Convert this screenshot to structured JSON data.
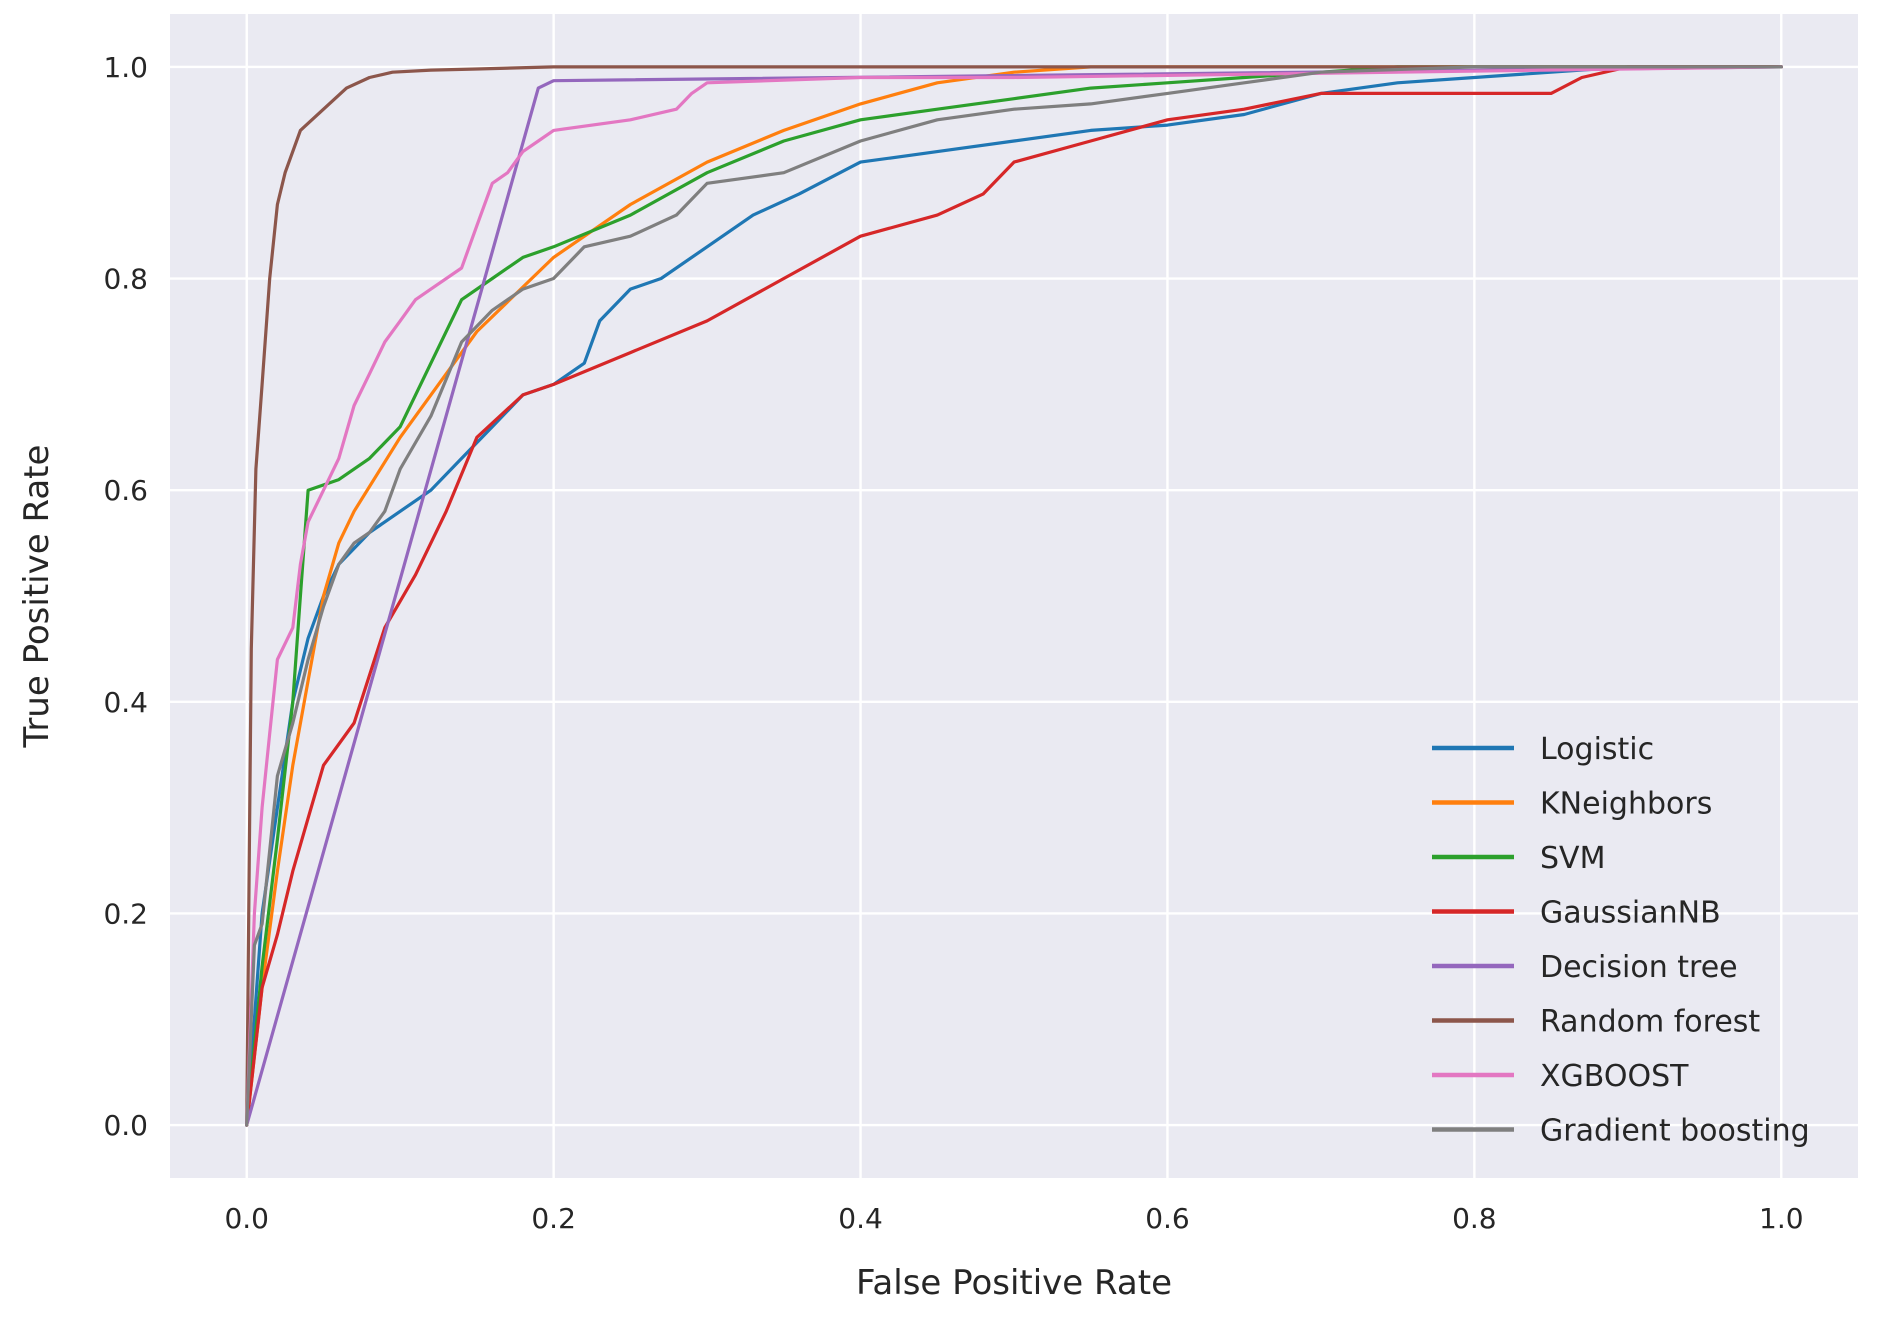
{
  "chart_data": {
    "type": "line",
    "title": "",
    "xlabel": "False Positive Rate",
    "ylabel": "True Positive Rate",
    "xlim": [
      -0.05,
      1.05
    ],
    "ylim": [
      -0.05,
      1.05
    ],
    "xticks": [
      0.0,
      0.2,
      0.4,
      0.6,
      0.8,
      1.0
    ],
    "yticks": [
      0.0,
      0.2,
      0.4,
      0.6,
      0.8,
      1.0
    ],
    "xtick_labels": [
      "0.0",
      "0.2",
      "0.4",
      "0.6",
      "0.8",
      "1.0"
    ],
    "ytick_labels": [
      "0.0",
      "0.2",
      "0.4",
      "0.6",
      "0.8",
      "1.0"
    ],
    "grid": true,
    "legend_position": "lower-right",
    "series": [
      {
        "name": "Logistic",
        "color": "#1f77b4",
        "x": [
          0.0,
          0.005,
          0.01,
          0.02,
          0.03,
          0.04,
          0.05,
          0.06,
          0.08,
          0.1,
          0.12,
          0.14,
          0.16,
          0.18,
          0.2,
          0.22,
          0.23,
          0.25,
          0.27,
          0.3,
          0.33,
          0.36,
          0.4,
          0.45,
          0.5,
          0.55,
          0.6,
          0.65,
          0.7,
          0.75,
          0.8,
          0.85,
          0.9,
          1.0
        ],
        "y": [
          0.0,
          0.1,
          0.2,
          0.3,
          0.4,
          0.46,
          0.5,
          0.53,
          0.56,
          0.58,
          0.6,
          0.63,
          0.66,
          0.69,
          0.7,
          0.72,
          0.76,
          0.79,
          0.8,
          0.83,
          0.86,
          0.88,
          0.91,
          0.92,
          0.93,
          0.94,
          0.945,
          0.955,
          0.975,
          0.985,
          0.99,
          0.995,
          1.0,
          1.0
        ]
      },
      {
        "name": "KNeighbors",
        "color": "#ff7f0e",
        "x": [
          0.0,
          0.01,
          0.02,
          0.03,
          0.04,
          0.05,
          0.06,
          0.07,
          0.1,
          0.15,
          0.2,
          0.25,
          0.3,
          0.35,
          0.4,
          0.45,
          0.5,
          0.55,
          0.6,
          0.7,
          0.8,
          0.9,
          1.0
        ],
        "y": [
          0.0,
          0.13,
          0.24,
          0.34,
          0.42,
          0.5,
          0.55,
          0.58,
          0.65,
          0.75,
          0.82,
          0.87,
          0.91,
          0.94,
          0.965,
          0.985,
          0.995,
          1.0,
          1.0,
          1.0,
          1.0,
          1.0,
          1.0
        ]
      },
      {
        "name": "SVM",
        "color": "#2ca02c",
        "x": [
          0.0,
          0.01,
          0.02,
          0.03,
          0.035,
          0.04,
          0.06,
          0.08,
          0.1,
          0.12,
          0.14,
          0.16,
          0.18,
          0.2,
          0.25,
          0.3,
          0.35,
          0.4,
          0.45,
          0.5,
          0.55,
          0.6,
          0.65,
          0.7,
          0.75,
          0.8,
          0.9,
          1.0
        ],
        "y": [
          0.0,
          0.15,
          0.27,
          0.4,
          0.5,
          0.6,
          0.61,
          0.63,
          0.66,
          0.72,
          0.78,
          0.8,
          0.82,
          0.83,
          0.86,
          0.9,
          0.93,
          0.95,
          0.96,
          0.97,
          0.98,
          0.985,
          0.99,
          0.995,
          1.0,
          1.0,
          1.0,
          1.0
        ]
      },
      {
        "name": "GaussianNB",
        "color": "#d62728",
        "x": [
          0.0,
          0.01,
          0.02,
          0.03,
          0.04,
          0.05,
          0.07,
          0.09,
          0.11,
          0.13,
          0.15,
          0.18,
          0.2,
          0.25,
          0.3,
          0.35,
          0.4,
          0.45,
          0.48,
          0.5,
          0.55,
          0.6,
          0.65,
          0.7,
          0.8,
          0.85,
          0.87,
          0.9,
          1.0
        ],
        "y": [
          0.0,
          0.13,
          0.18,
          0.24,
          0.29,
          0.34,
          0.38,
          0.47,
          0.52,
          0.58,
          0.65,
          0.69,
          0.7,
          0.73,
          0.76,
          0.8,
          0.84,
          0.86,
          0.88,
          0.91,
          0.93,
          0.95,
          0.96,
          0.975,
          0.975,
          0.975,
          0.99,
          1.0,
          1.0
        ]
      },
      {
        "name": "Decision tree",
        "color": "#9467bd",
        "x": [
          0.0,
          0.19,
          0.2,
          1.0
        ],
        "y": [
          0.0,
          0.98,
          0.987,
          1.0
        ]
      },
      {
        "name": "Random forest",
        "color": "#8c564b",
        "x": [
          0.0,
          0.003,
          0.006,
          0.01,
          0.015,
          0.02,
          0.025,
          0.035,
          0.05,
          0.065,
          0.08,
          0.095,
          0.12,
          0.15,
          0.2,
          0.3,
          0.5,
          1.0
        ],
        "y": [
          0.0,
          0.45,
          0.62,
          0.7,
          0.8,
          0.87,
          0.9,
          0.94,
          0.96,
          0.98,
          0.99,
          0.995,
          0.997,
          0.998,
          1.0,
          1.0,
          1.0,
          1.0
        ]
      },
      {
        "name": "XGBOOST",
        "color": "#e377c2",
        "x": [
          0.0,
          0.005,
          0.01,
          0.015,
          0.02,
          0.03,
          0.035,
          0.04,
          0.05,
          0.06,
          0.07,
          0.08,
          0.09,
          0.1,
          0.11,
          0.12,
          0.14,
          0.15,
          0.16,
          0.17,
          0.18,
          0.19,
          0.2,
          0.25,
          0.28,
          0.29,
          0.3,
          0.4,
          0.5,
          1.0
        ],
        "y": [
          0.0,
          0.2,
          0.3,
          0.37,
          0.44,
          0.47,
          0.53,
          0.57,
          0.6,
          0.63,
          0.68,
          0.71,
          0.74,
          0.76,
          0.78,
          0.79,
          0.81,
          0.85,
          0.89,
          0.9,
          0.92,
          0.93,
          0.94,
          0.95,
          0.96,
          0.975,
          0.985,
          0.99,
          0.99,
          1.0
        ]
      },
      {
        "name": "Gradient boosting",
        "color": "#7f7f7f",
        "x": [
          0.0,
          0.005,
          0.01,
          0.02,
          0.03,
          0.04,
          0.05,
          0.06,
          0.07,
          0.08,
          0.09,
          0.1,
          0.12,
          0.14,
          0.16,
          0.18,
          0.2,
          0.22,
          0.25,
          0.28,
          0.3,
          0.35,
          0.4,
          0.45,
          0.5,
          0.55,
          0.6,
          0.65,
          0.7,
          0.8,
          0.9,
          1.0
        ],
        "y": [
          0.0,
          0.17,
          0.19,
          0.33,
          0.38,
          0.44,
          0.49,
          0.53,
          0.55,
          0.56,
          0.58,
          0.62,
          0.67,
          0.74,
          0.77,
          0.79,
          0.8,
          0.83,
          0.84,
          0.86,
          0.89,
          0.9,
          0.93,
          0.95,
          0.96,
          0.965,
          0.975,
          0.985,
          0.995,
          1.0,
          1.0,
          1.0
        ]
      }
    ]
  }
}
